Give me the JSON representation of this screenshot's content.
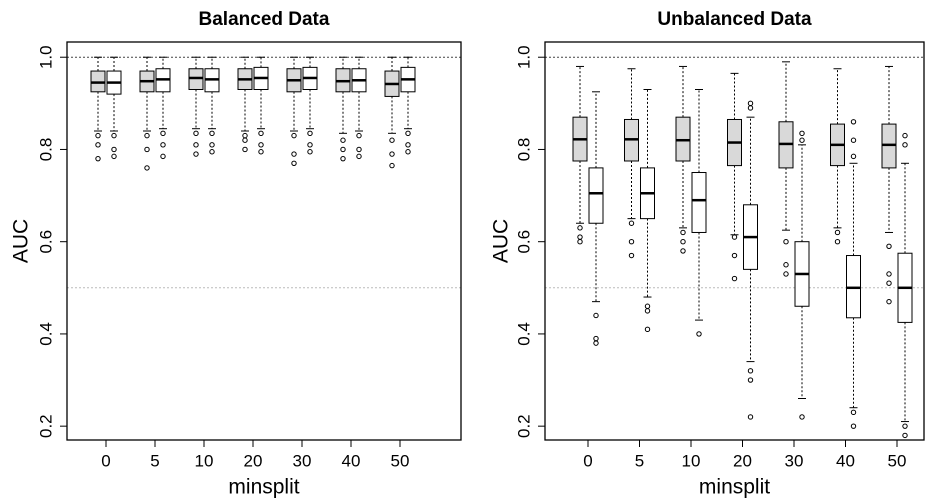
{
  "chart_data": [
    {
      "type": "box",
      "title": "Balanced Data",
      "xlabel": "minsplit",
      "ylabel": "AUC",
      "categories": [
        "0",
        "5",
        "10",
        "20",
        "30",
        "40",
        "50"
      ],
      "ylim": [
        0.17,
        1.033
      ],
      "yticks": [
        0.2,
        0.4,
        0.6,
        0.8,
        {
          "value": 1,
          "label": "1.0"
        }
      ],
      "hlines": [
        {
          "value": 1,
          "color": "#444444"
        },
        {
          "value": 0.5,
          "color": "#bbbbbb"
        }
      ],
      "series": [
        {
          "color": "#d9d9d9",
          "boxes": [
            {
              "whislo": 0.84,
              "q1": 0.925,
              "med": 0.945,
              "q3": 0.97,
              "whishi": 1,
              "outliers": [
                0.83,
                0.81,
                0.78
              ]
            },
            {
              "whislo": 0.84,
              "q1": 0.925,
              "med": 0.948,
              "q3": 0.97,
              "whishi": 1,
              "outliers": [
                0.83,
                0.8,
                0.76
              ]
            },
            {
              "whislo": 0.845,
              "q1": 0.93,
              "med": 0.955,
              "q3": 0.975,
              "whishi": 1,
              "outliers": [
                0.835,
                0.81,
                0.79
              ]
            },
            {
              "whislo": 0.84,
              "q1": 0.93,
              "med": 0.952,
              "q3": 0.975,
              "whishi": 1,
              "outliers": [
                0.83,
                0.82,
                0.8
              ]
            },
            {
              "whislo": 0.84,
              "q1": 0.925,
              "med": 0.95,
              "q3": 0.975,
              "whishi": 1,
              "outliers": [
                0.83,
                0.79,
                0.77
              ]
            },
            {
              "whislo": 0.835,
              "q1": 0.925,
              "med": 0.948,
              "q3": 0.975,
              "whishi": 1,
              "outliers": [
                0.82,
                0.8,
                0.78
              ]
            },
            {
              "whislo": 0.835,
              "q1": 0.915,
              "med": 0.942,
              "q3": 0.97,
              "whishi": 1,
              "outliers": [
                0.82,
                0.79,
                0.765
              ]
            }
          ]
        },
        {
          "color": "#ffffff",
          "boxes": [
            {
              "whislo": 0.84,
              "q1": 0.92,
              "med": 0.945,
              "q3": 0.97,
              "whishi": 1,
              "outliers": [
                0.83,
                0.8,
                0.785
              ]
            },
            {
              "whislo": 0.845,
              "q1": 0.925,
              "med": 0.952,
              "q3": 0.975,
              "whishi": 1,
              "outliers": [
                0.835,
                0.81,
                0.785
              ]
            },
            {
              "whislo": 0.845,
              "q1": 0.925,
              "med": 0.952,
              "q3": 0.975,
              "whishi": 1,
              "outliers": [
                0.835,
                0.81,
                0.795
              ]
            },
            {
              "whislo": 0.845,
              "q1": 0.93,
              "med": 0.955,
              "q3": 0.978,
              "whishi": 1,
              "outliers": [
                0.835,
                0.81,
                0.795
              ]
            },
            {
              "whislo": 0.845,
              "q1": 0.93,
              "med": 0.955,
              "q3": 0.978,
              "whishi": 1,
              "outliers": [
                0.835,
                0.81,
                0.795
              ]
            },
            {
              "whislo": 0.84,
              "q1": 0.925,
              "med": 0.95,
              "q3": 0.975,
              "whishi": 1,
              "outliers": [
                0.83,
                0.8,
                0.785
              ]
            },
            {
              "whislo": 0.845,
              "q1": 0.925,
              "med": 0.952,
              "q3": 0.978,
              "whishi": 1,
              "outliers": [
                0.835,
                0.81,
                0.795
              ]
            }
          ]
        }
      ]
    },
    {
      "type": "box",
      "title": "Unbalanced Data",
      "xlabel": "minsplit",
      "ylabel": "AUC",
      "categories": [
        "0",
        "5",
        "10",
        "20",
        "30",
        "40",
        "50"
      ],
      "ylim": [
        0.17,
        1.033
      ],
      "yticks": [
        0.2,
        0.4,
        0.6,
        0.8,
        {
          "value": 1,
          "label": "1.0"
        }
      ],
      "hlines": [
        {
          "value": 1,
          "color": "#444444"
        },
        {
          "value": 0.5,
          "color": "#bbbbbb"
        }
      ],
      "series": [
        {
          "color": "#d9d9d9",
          "boxes": [
            {
              "whislo": 0.64,
              "q1": 0.775,
              "med": 0.822,
              "q3": 0.87,
              "whishi": 0.98,
              "outliers": [
                0.63,
                0.61,
                0.6
              ]
            },
            {
              "whislo": 0.65,
              "q1": 0.775,
              "med": 0.822,
              "q3": 0.865,
              "whishi": 0.975,
              "outliers": [
                0.64,
                0.6,
                0.57
              ]
            },
            {
              "whislo": 0.63,
              "q1": 0.775,
              "med": 0.82,
              "q3": 0.87,
              "whishi": 0.98,
              "outliers": [
                0.62,
                0.6,
                0.58
              ]
            },
            {
              "whislo": 0.615,
              "q1": 0.765,
              "med": 0.815,
              "q3": 0.865,
              "whishi": 0.965,
              "outliers": [
                0.61,
                0.57,
                0.52
              ]
            },
            {
              "whislo": 0.625,
              "q1": 0.76,
              "med": 0.812,
              "q3": 0.86,
              "whishi": 0.99,
              "outliers": [
                0.6,
                0.55,
                0.53
              ]
            },
            {
              "whislo": 0.63,
              "q1": 0.765,
              "med": 0.81,
              "q3": 0.855,
              "whishi": 0.975,
              "outliers": [
                0.62,
                0.6
              ]
            },
            {
              "whislo": 0.62,
              "q1": 0.76,
              "med": 0.81,
              "q3": 0.855,
              "whishi": 0.98,
              "outliers": [
                0.59,
                0.53,
                0.51,
                0.47
              ]
            }
          ]
        },
        {
          "color": "#ffffff",
          "boxes": [
            {
              "whislo": 0.47,
              "q1": 0.64,
              "med": 0.705,
              "q3": 0.76,
              "whishi": 0.925,
              "outliers": [
                0.44,
                0.39,
                0.38
              ]
            },
            {
              "whislo": 0.48,
              "q1": 0.65,
              "med": 0.705,
              "q3": 0.76,
              "whishi": 0.93,
              "outliers": [
                0.46,
                0.45,
                0.41
              ]
            },
            {
              "whislo": 0.43,
              "q1": 0.62,
              "med": 0.69,
              "q3": 0.75,
              "whishi": 0.93,
              "outliers": [
                0.4
              ]
            },
            {
              "whislo": 0.34,
              "q1": 0.54,
              "med": 0.61,
              "q3": 0.68,
              "whishi": 0.87,
              "outliers": [
                0.9,
                0.89,
                0.32,
                0.3,
                0.22
              ]
            },
            {
              "whislo": 0.26,
              "q1": 0.46,
              "med": 0.53,
              "q3": 0.6,
              "whishi": 0.81,
              "outliers": [
                0.835,
                0.82,
                0.22
              ]
            },
            {
              "whislo": 0.24,
              "q1": 0.435,
              "med": 0.5,
              "q3": 0.57,
              "whishi": 0.77,
              "outliers": [
                0.86,
                0.82,
                0.785,
                0.23,
                0.2
              ]
            },
            {
              "whislo": 0.21,
              "q1": 0.425,
              "med": 0.5,
              "q3": 0.575,
              "whishi": 0.77,
              "outliers": [
                0.83,
                0.81,
                0.2,
                0.18
              ]
            }
          ]
        }
      ]
    }
  ]
}
